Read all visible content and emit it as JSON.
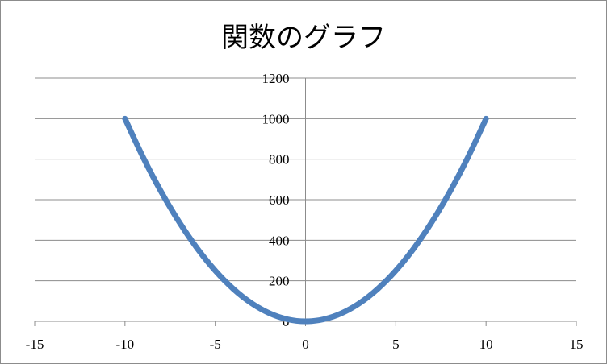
{
  "chart_data": {
    "type": "scatter",
    "title": "関数のグラフ",
    "series": [
      {
        "x": [
          -10,
          -9,
          -8,
          -7,
          -6,
          -5,
          -4,
          -3,
          -2,
          -1,
          0,
          1,
          2,
          3,
          4,
          5,
          6,
          7,
          8,
          9,
          10
        ],
        "y": [
          100,
          81,
          64,
          49,
          36,
          25,
          16,
          9,
          4,
          1,
          0,
          1,
          4,
          9,
          16,
          25,
          36,
          49,
          64,
          81,
          100
        ],
        "y_scale": 10,
        "color": "#4f81bd",
        "smooth": true
      }
    ],
    "xlim": [
      -15,
      15
    ],
    "ylim": [
      0,
      1200
    ],
    "xticks": [
      "-15",
      "-10",
      "-5",
      "0",
      "5",
      "10",
      "15"
    ],
    "yticks": [
      "0",
      "200",
      "400",
      "600",
      "800",
      "1000",
      "1200"
    ],
    "grid": "horizontal",
    "legend": "none"
  }
}
